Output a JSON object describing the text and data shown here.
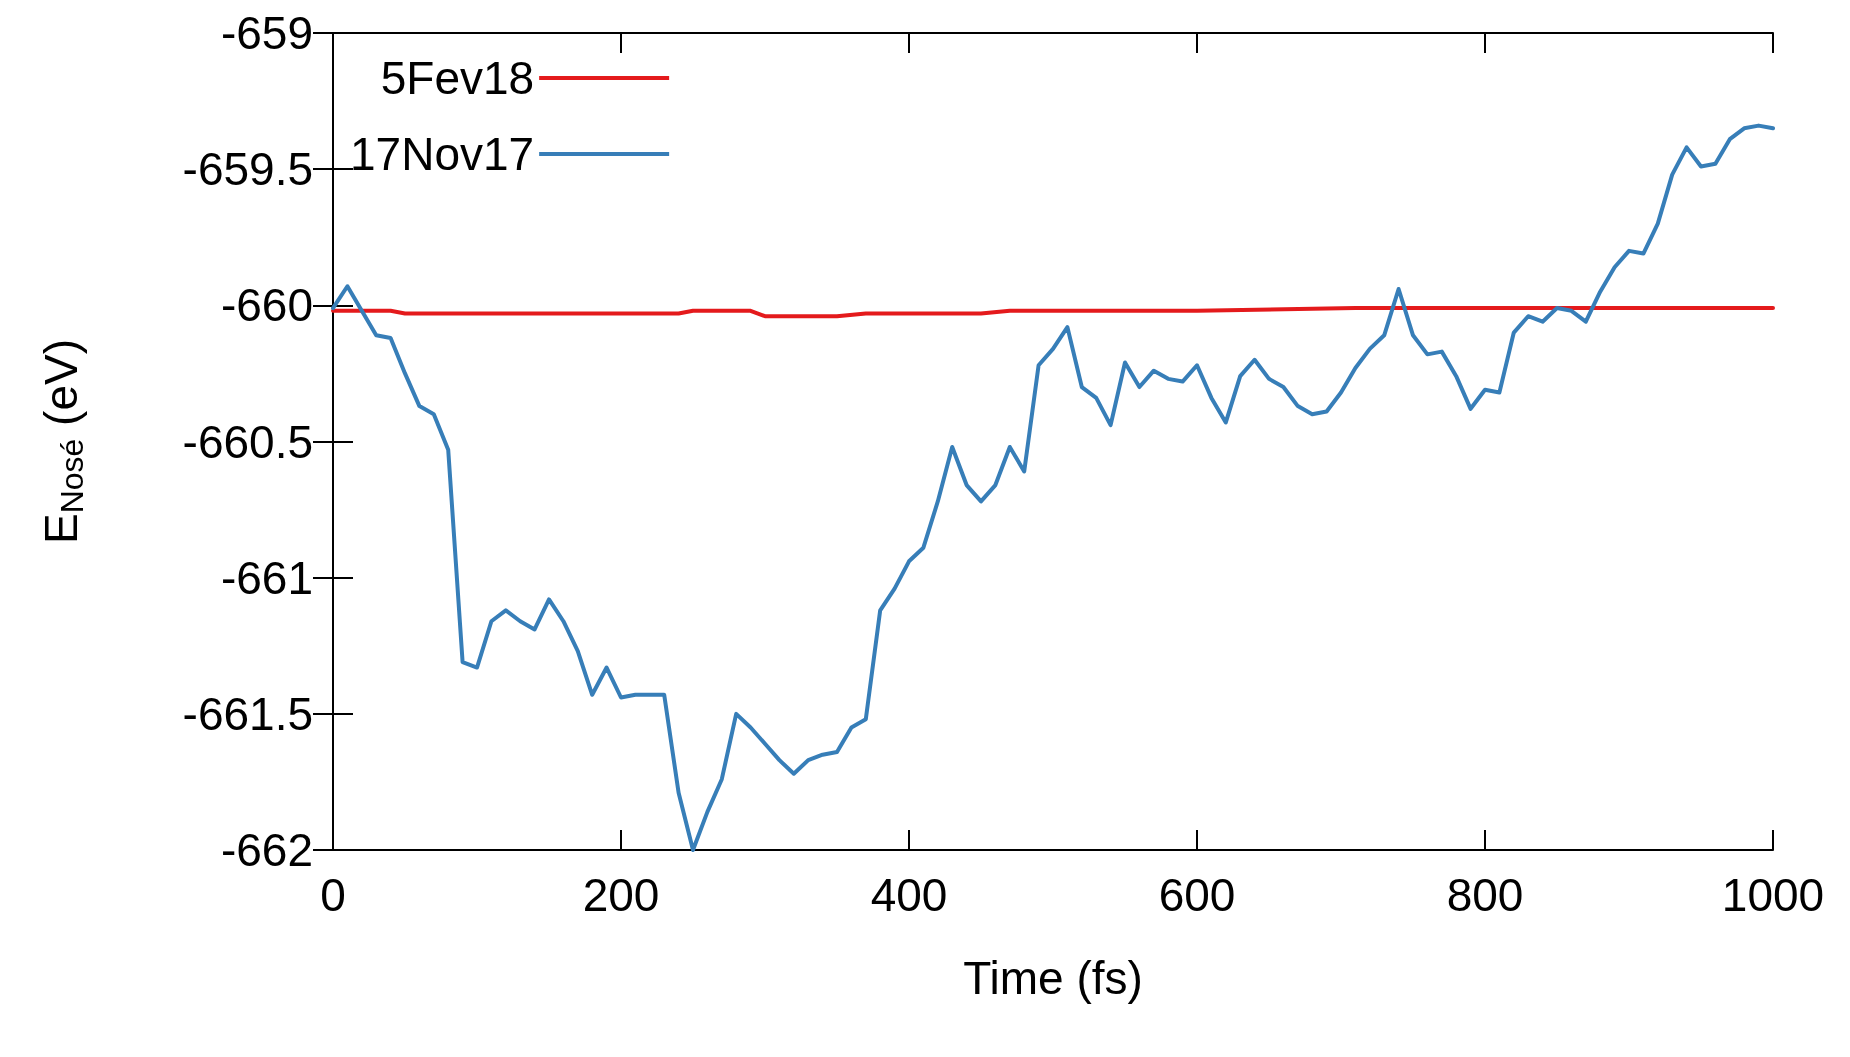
{
  "chart_data": {
    "type": "line",
    "xlabel": "Time (fs)",
    "ylabel": "E$_{Nosé}$ (eV)",
    "xlim": [
      0,
      1000
    ],
    "xticks": [
      0,
      200,
      400,
      600,
      800,
      1000
    ],
    "ylim": [
      -662,
      -659
    ],
    "yticks": [
      -662,
      -661.5,
      -661,
      -660.5,
      -660,
      -659.5,
      -659
    ],
    "grid": false,
    "legend": "top left",
    "line_style": "solid",
    "marker": "none",
    "series": [
      {
        "name": "5Fev18",
        "color": "#e41a1c",
        "x": [
          0,
          40,
          50,
          240,
          250,
          290,
          300,
          350,
          370,
          450,
          470,
          600,
          710,
          800,
          1000
        ],
        "values": [
          -660.02,
          -660.02,
          -660.03,
          -660.03,
          -660.02,
          -660.02,
          -660.04,
          -660.04,
          -660.03,
          -660.03,
          -660.02,
          -660.02,
          -660.01,
          -660.01,
          -660.01
        ]
      },
      {
        "name": "17Nov17",
        "color": "#377eb8",
        "x": [
          0,
          10,
          20,
          30,
          40,
          50,
          60,
          70,
          80,
          90,
          100,
          110,
          120,
          130,
          140,
          150,
          160,
          170,
          180,
          190,
          200,
          210,
          220,
          230,
          240,
          250,
          260,
          270,
          280,
          290,
          300,
          310,
          320,
          330,
          340,
          350,
          360,
          370,
          380,
          390,
          400,
          410,
          420,
          430,
          440,
          450,
          460,
          470,
          480,
          490,
          500,
          510,
          520,
          530,
          540,
          550,
          560,
          570,
          580,
          590,
          600,
          610,
          620,
          630,
          640,
          650,
          660,
          670,
          680,
          690,
          700,
          710,
          720,
          730,
          740,
          750,
          760,
          770,
          780,
          790,
          800,
          810,
          820,
          830,
          840,
          850,
          860,
          870,
          880,
          890,
          900,
          910,
          920,
          930,
          940,
          950,
          960,
          970,
          980,
          990,
          1000
        ],
        "values": [
          -660.01,
          -659.93,
          -660.02,
          -660.11,
          -660.12,
          -660.25,
          -660.37,
          -660.4,
          -660.53,
          -661.31,
          -661.33,
          -661.16,
          -661.12,
          -661.16,
          -661.19,
          -661.08,
          -661.16,
          -661.27,
          -661.43,
          -661.33,
          -661.44,
          -661.43,
          -661.43,
          -661.43,
          -661.79,
          -662,
          -661.86,
          -661.74,
          -661.5,
          -661.55,
          -661.61,
          -661.67,
          -661.72,
          -661.67,
          -661.65,
          -661.64,
          -661.55,
          -661.52,
          -661.12,
          -661.04,
          -660.94,
          -660.89,
          -660.72,
          -660.52,
          -660.66,
          -660.72,
          -660.66,
          -660.52,
          -660.61,
          -660.22,
          -660.16,
          -660.08,
          -660.3,
          -660.34,
          -660.44,
          -660.21,
          -660.3,
          -660.24,
          -660.27,
          -660.28,
          -660.22,
          -660.34,
          -660.43,
          -660.26,
          -660.2,
          -660.27,
          -660.3,
          -660.37,
          -660.4,
          -660.39,
          -660.32,
          -660.23,
          -660.16,
          -660.11,
          -659.94,
          -660.11,
          -660.18,
          -660.17,
          -660.26,
          -660.38,
          -660.31,
          -660.32,
          -660.1,
          -660.04,
          -660.06,
          -660.01,
          -660.02,
          -660.06,
          -659.95,
          -659.86,
          -659.8,
          -659.81,
          -659.7,
          -659.52,
          -659.42,
          -659.49,
          -659.48,
          -659.39,
          -659.35,
          -659.34,
          -659.35
        ]
      }
    ]
  }
}
